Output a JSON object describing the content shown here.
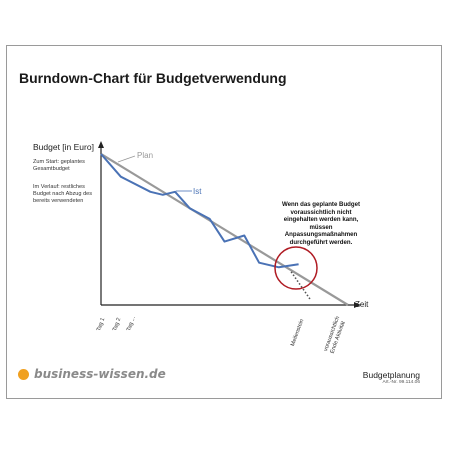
{
  "title": "Burndown-Chart für Budgetverwendung",
  "chart_data": {
    "type": "line",
    "title": "Burndown-Chart für Budgetverwendung",
    "ylabel": "Budget [in Euro]",
    "xlabel": "Zeit",
    "tick_labels": [
      "Tag 1",
      "Tag 2",
      "Tag ...",
      "Meilenstein",
      "voraussichtlich Ende Aktivität"
    ],
    "xlim": [
      0,
      100
    ],
    "ylim": [
      0,
      100
    ],
    "series": [
      {
        "name": "Plan",
        "color": "#999999",
        "x": [
          0,
          100
        ],
        "y": [
          100,
          0
        ]
      },
      {
        "name": "Ist",
        "color": "#4a72b5",
        "x": [
          0,
          8,
          20,
          25,
          30,
          36,
          44,
          50,
          58,
          64,
          72,
          80
        ],
        "y": [
          100,
          85,
          75,
          73,
          75,
          64,
          57,
          42,
          46,
          28,
          25,
          27
        ]
      }
    ],
    "projection": {
      "x": [
        77,
        85
      ],
      "y": [
        22,
        3
      ]
    },
    "grid": false
  },
  "notes": {
    "start": "Zum Start: geplantes Gesamtbudget",
    "verlauf": "Im Verlauf: restliches Budget nach Abzug des bereits verwendeten"
  },
  "callout": "Wenn das geplante Budget voraussichtlich nicht eingehalten werden kann, müssen Anpassungsmaßnahmen durchgeführt werden.",
  "callout_circle_color": "#b01c24",
  "brand": {
    "name": "business-wissen.de",
    "dot_color": "#f0a020"
  },
  "footer": {
    "title": "Budgetplanung",
    "article": "Art.-Nr. 99.114.06"
  }
}
